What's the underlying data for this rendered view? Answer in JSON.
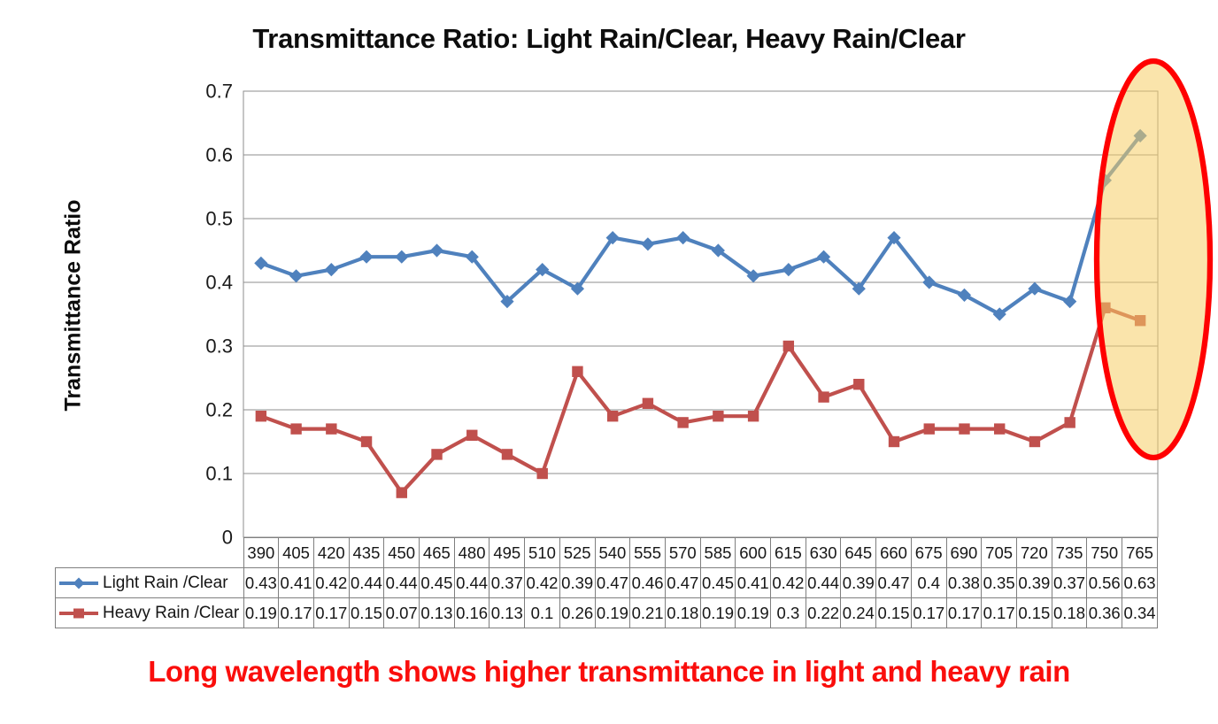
{
  "chart_data": {
    "type": "line",
    "title": "Transmittance Ratio: Light Rain/Clear, Heavy Rain/Clear",
    "ylabel": "Transmittance Ratio",
    "ylim": [
      0,
      0.7
    ],
    "yticks": [
      0,
      0.1,
      0.2,
      0.3,
      0.4,
      0.5,
      0.6,
      0.7
    ],
    "grid": true,
    "legend_position": "table-left",
    "categories": [
      390,
      405,
      420,
      435,
      450,
      465,
      480,
      495,
      510,
      525,
      540,
      555,
      570,
      585,
      600,
      615,
      630,
      645,
      660,
      675,
      690,
      705,
      720,
      735,
      750,
      765
    ],
    "series": [
      {
        "name": "Light Rain /Clear",
        "marker": "diamond",
        "color": "#4F81BD",
        "values": [
          0.43,
          0.41,
          0.42,
          0.44,
          0.44,
          0.45,
          0.44,
          0.37,
          0.42,
          0.39,
          0.47,
          0.46,
          0.47,
          0.45,
          0.41,
          0.42,
          0.44,
          0.39,
          0.47,
          0.4,
          0.38,
          0.35,
          0.39,
          0.37,
          0.56,
          0.63
        ]
      },
      {
        "name": "Heavy Rain /Clear",
        "marker": "square",
        "color": "#C0504D",
        "values": [
          0.19,
          0.17,
          0.17,
          0.15,
          0.07,
          0.13,
          0.16,
          0.13,
          0.1,
          0.26,
          0.19,
          0.21,
          0.18,
          0.19,
          0.19,
          0.3,
          0.22,
          0.24,
          0.15,
          0.17,
          0.17,
          0.17,
          0.15,
          0.18,
          0.36,
          0.34
        ]
      }
    ],
    "highlight": {
      "shape": "ellipse",
      "covers_categories": [
        750,
        765
      ],
      "fill": "#F6CD66",
      "fill_opacity": 0.55,
      "stroke": "#FF0000"
    },
    "gridline_color": "#8E8E8E"
  },
  "annotation": {
    "text": "Long wavelength shows higher transmittance in light and heavy rain",
    "color": "#FA0E0C"
  }
}
